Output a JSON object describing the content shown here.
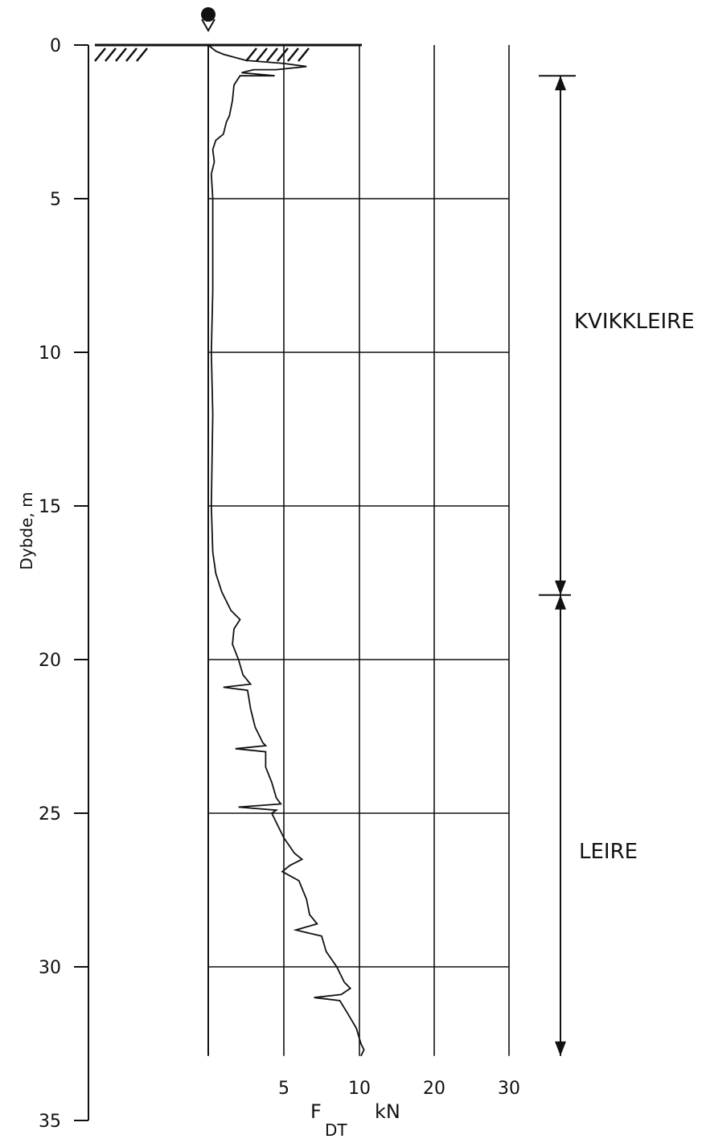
{
  "chart_data": {
    "type": "line",
    "title": "",
    "ylabel": "Dybde, m",
    "xlabel_main": "F",
    "xlabel_sub": "DT",
    "xlabel_unit": "kN",
    "yticks": [
      0,
      5,
      10,
      15,
      20,
      25,
      30,
      35
    ],
    "ylim": [
      0,
      35
    ],
    "xticks": [
      5,
      10,
      20,
      30
    ],
    "x_scale_note": "linear 0-10, then 10-30 compressed",
    "terminal_depth": 32.9,
    "series": [
      {
        "points": [
          [
            0,
            0
          ],
          [
            0.5,
            0.2
          ],
          [
            1,
            0.3
          ],
          [
            2.5,
            0.5
          ],
          [
            5,
            0.6
          ],
          [
            6.5,
            0.7
          ],
          [
            4.5,
            0.8
          ],
          [
            3,
            0.8
          ],
          [
            2.2,
            0.9
          ],
          [
            4.4,
            1.0
          ],
          [
            2.1,
            1.0
          ],
          [
            1.7,
            1.3
          ],
          [
            1.6,
            1.8
          ],
          [
            1.4,
            2.3
          ],
          [
            1.2,
            2.5
          ],
          [
            1.0,
            2.9
          ],
          [
            0.5,
            3.1
          ],
          [
            0.3,
            3.4
          ],
          [
            0.4,
            3.8
          ],
          [
            0.2,
            4.2
          ],
          [
            0.3,
            5
          ],
          [
            0.3,
            8
          ],
          [
            0.2,
            10
          ],
          [
            0.3,
            12
          ],
          [
            0.2,
            15
          ],
          [
            0.3,
            16.5
          ],
          [
            0.5,
            17.2
          ],
          [
            0.9,
            17.8
          ],
          [
            1.5,
            18.4
          ],
          [
            2.1,
            18.7
          ],
          [
            1.7,
            19.0
          ],
          [
            1.6,
            19.5
          ],
          [
            2.0,
            20.0
          ],
          [
            2.3,
            20.5
          ],
          [
            2.8,
            20.8
          ],
          [
            1.0,
            20.9
          ],
          [
            2.6,
            21.0
          ],
          [
            2.8,
            21.6
          ],
          [
            3.1,
            22.2
          ],
          [
            3.6,
            22.7
          ],
          [
            3.8,
            22.8
          ],
          [
            1.8,
            22.9
          ],
          [
            3.8,
            23.0
          ],
          [
            3.8,
            23.5
          ],
          [
            4.2,
            24.0
          ],
          [
            4.5,
            24.5
          ],
          [
            4.8,
            24.7
          ],
          [
            2.0,
            24.8
          ],
          [
            4.5,
            24.9
          ],
          [
            4.2,
            25.0
          ],
          [
            4.5,
            25.3
          ],
          [
            5.0,
            25.8
          ],
          [
            5.7,
            26.3
          ],
          [
            6.2,
            26.5
          ],
          [
            5.4,
            26.7
          ],
          [
            4.9,
            26.9
          ],
          [
            6.0,
            27.2
          ],
          [
            6.5,
            27.8
          ],
          [
            6.7,
            28.3
          ],
          [
            7.2,
            28.6
          ],
          [
            5.8,
            28.8
          ],
          [
            7.5,
            29.0
          ],
          [
            7.8,
            29.5
          ],
          [
            8.5,
            30.0
          ],
          [
            9.0,
            30.5
          ],
          [
            9.4,
            30.7
          ],
          [
            8.8,
            30.9
          ],
          [
            7.0,
            31.0
          ],
          [
            8.7,
            31.1
          ],
          [
            9.2,
            31.5
          ],
          [
            9.8,
            32.0
          ],
          [
            10.2,
            32.5
          ],
          [
            10.6,
            32.7
          ],
          [
            10.2,
            32.9
          ]
        ]
      }
    ],
    "annotations": {
      "kvikkleire": {
        "text": "KVIKKLEIRE",
        "from_depth": 1.0,
        "to_depth": 17.9
      },
      "leire": {
        "text": "LEIRE",
        "from_depth": 17.9,
        "to_depth": 32.9
      }
    }
  }
}
